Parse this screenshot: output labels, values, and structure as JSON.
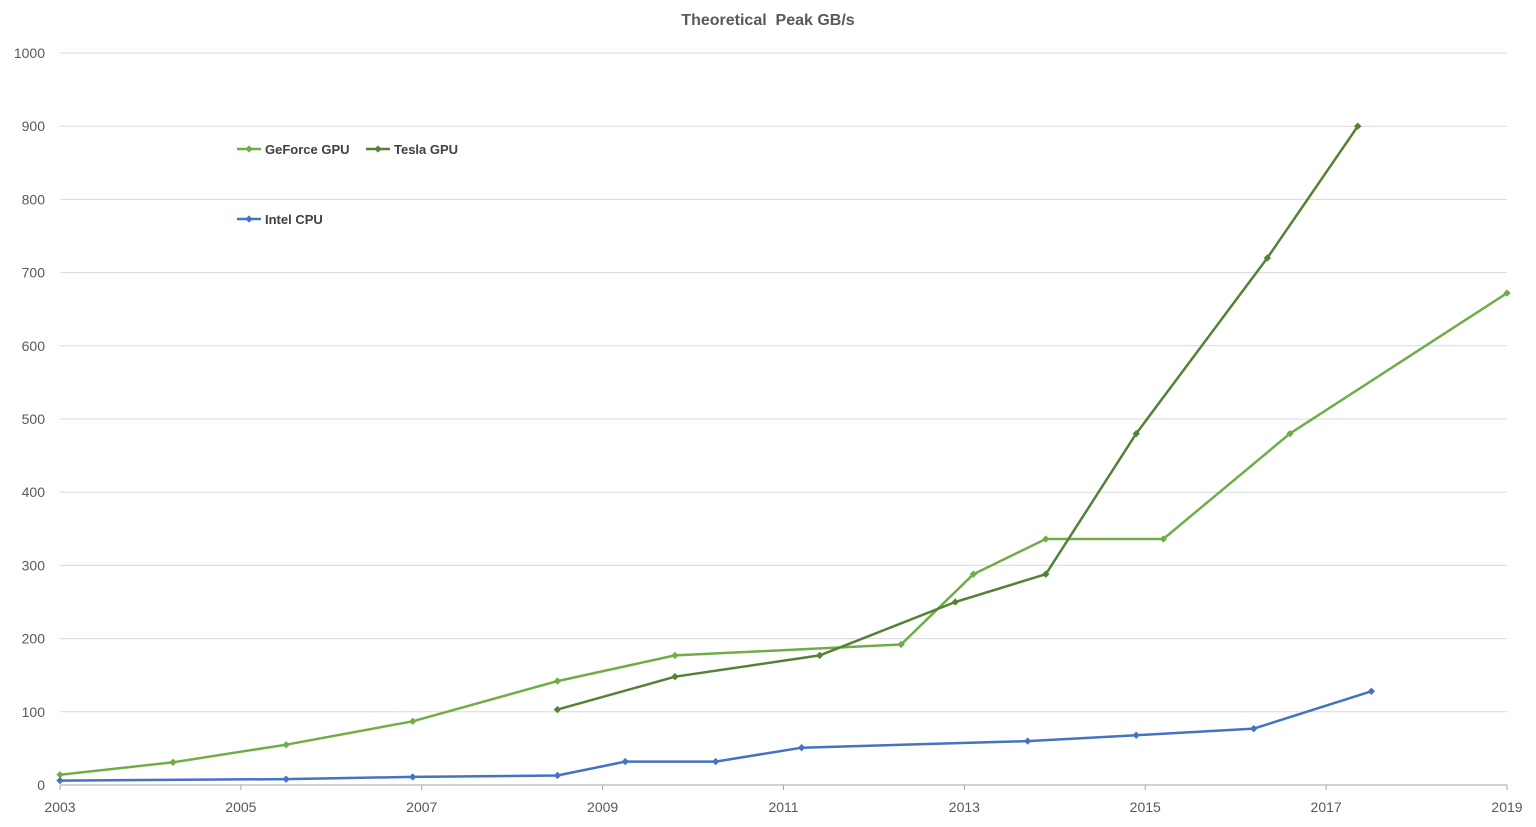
{
  "chart_data": {
    "type": "line",
    "title": "Theoretical  Peak GB/s",
    "xlabel": "",
    "ylabel": "",
    "xlim": [
      2003,
      2019
    ],
    "ylim": [
      0,
      1000
    ],
    "x_ticks": [
      "2003",
      "2005",
      "2007",
      "2009",
      "2011",
      "2013",
      "2015",
      "2017",
      "2019"
    ],
    "y_ticks": [
      "0",
      "100",
      "200",
      "300",
      "400",
      "500",
      "600",
      "700",
      "800",
      "900",
      "1000"
    ],
    "grid": "horizontal",
    "legend_position": "top-left",
    "series": [
      {
        "name": "GeForce GPU",
        "color": "#70ad47",
        "x": [
          2003.0,
          2004.25,
          2005.5,
          2006.9,
          2008.5,
          2009.8,
          2012.3,
          2013.1,
          2013.9,
          2015.2,
          2016.6,
          2019.0
        ],
        "y": [
          14,
          31,
          55,
          87,
          142,
          177,
          192,
          288,
          336,
          336,
          480,
          672
        ]
      },
      {
        "name": "Tesla GPU",
        "color": "#548235",
        "x": [
          2008.5,
          2009.8,
          2011.4,
          2012.9,
          2013.9,
          2014.9,
          2016.35,
          2017.35
        ],
        "y": [
          103,
          148,
          177,
          250,
          288,
          480,
          720,
          900
        ]
      },
      {
        "name": "Intel CPU",
        "color": "#4472c4",
        "x": [
          2003.0,
          2005.5,
          2006.9,
          2008.5,
          2009.25,
          2010.25,
          2011.2,
          2013.7,
          2014.9,
          2016.2,
          2017.5
        ],
        "y": [
          6,
          8,
          11,
          13,
          32,
          32,
          51,
          60,
          68,
          77,
          128
        ]
      }
    ]
  }
}
